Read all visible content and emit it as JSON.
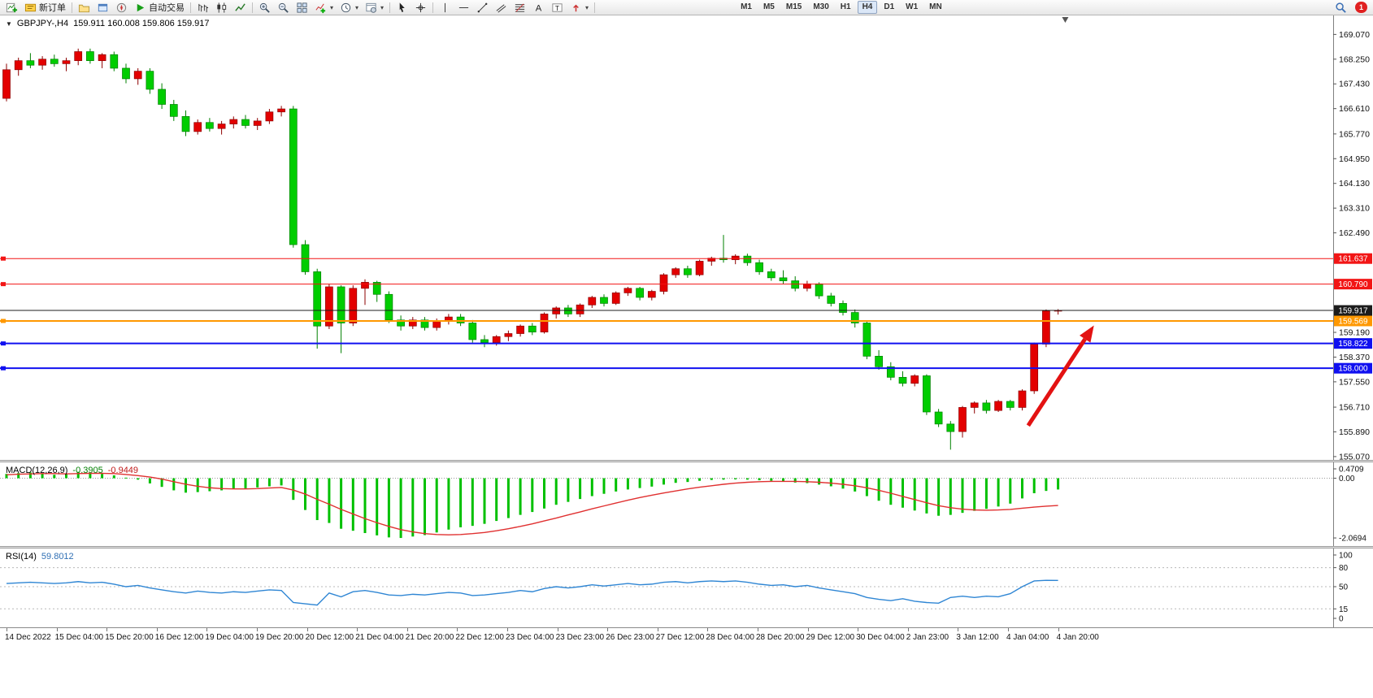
{
  "toolbar": {
    "new_order_label": "新订单",
    "auto_trading_label": "自动交易",
    "timeframes": [
      {
        "label": "M1",
        "active": false
      },
      {
        "label": "M5",
        "active": false
      },
      {
        "label": "M15",
        "active": false
      },
      {
        "label": "M30",
        "active": false
      },
      {
        "label": "H1",
        "active": false
      },
      {
        "label": "H4",
        "active": true
      },
      {
        "label": "D1",
        "active": false
      },
      {
        "label": "W1",
        "active": false
      },
      {
        "label": "MN",
        "active": false
      }
    ],
    "notification_count": "1",
    "icons": [
      "new-chart-icon",
      "new-order-icon",
      "charts-profile-icon",
      "market-watch-icon",
      "navigator-icon",
      "auto-trading-icon",
      "bar-chart-icon",
      "candlestick-chart-icon",
      "line-chart-icon",
      "zoom-in-icon",
      "zoom-out-icon",
      "tile-windows-icon",
      "indicators-icon",
      "periods-icon",
      "templates-icon",
      "cursor-icon",
      "crosshair-icon",
      "vertical-line-icon",
      "horizontal-line-icon",
      "trendline-icon",
      "channel-icon",
      "fibonacci-icon",
      "text-icon",
      "text-label-icon",
      "arrows-icon",
      "search-icon",
      "notification-badge"
    ]
  },
  "chart_data": {
    "type": "candlestick",
    "symbol_period": "GBPJPY-,H4",
    "ohlc_readout": "159.911 160.008 159.806 159.917",
    "price_axis": {
      "min": 154.96,
      "max": 169.7,
      "ticks": [
        "169.070",
        "168.250",
        "167.430",
        "166.610",
        "165.770",
        "164.950",
        "164.130",
        "163.310",
        "162.490",
        "159.190",
        "158.370",
        "157.550",
        "156.710",
        "155.890",
        "155.070"
      ]
    },
    "hlines": [
      {
        "price": 161.637,
        "label": "161.637",
        "color": "#f21515",
        "width": 1
      },
      {
        "price": 160.79,
        "label": "160.790",
        "color": "#f21515",
        "width": 1
      },
      {
        "price": 159.569,
        "label": "159.569",
        "color": "#ff9800",
        "width": 2
      },
      {
        "price": 158.822,
        "label": "158.822",
        "color": "#1010f0",
        "width": 2
      },
      {
        "price": 158.0,
        "label": "158.000",
        "color": "#1010f0",
        "width": 2
      }
    ],
    "current_price": {
      "value": 159.917,
      "label": "159.917",
      "color": "#1c1c1c"
    },
    "shift_marker_bar": 88.6,
    "annotation_arrow": {
      "from_bar": 85.5,
      "from_price": 156.1,
      "to_bar": 91,
      "to_price": 159.42,
      "color": "#e31212"
    },
    "candles": [
      [
        166.95,
        168.1,
        166.85,
        167.9
      ],
      [
        167.9,
        168.3,
        167.7,
        168.2
      ],
      [
        168.2,
        168.45,
        167.95,
        168.05
      ],
      [
        168.05,
        168.35,
        167.9,
        168.25
      ],
      [
        168.25,
        168.4,
        168.0,
        168.1
      ],
      [
        168.1,
        168.3,
        167.85,
        168.2
      ],
      [
        168.2,
        168.6,
        168.05,
        168.5
      ],
      [
        168.5,
        168.6,
        168.1,
        168.2
      ],
      [
        168.2,
        168.45,
        167.95,
        168.4
      ],
      [
        168.4,
        168.5,
        167.85,
        167.95
      ],
      [
        167.95,
        168.1,
        167.45,
        167.6
      ],
      [
        167.6,
        167.95,
        167.4,
        167.85
      ],
      [
        167.85,
        167.95,
        167.1,
        167.25
      ],
      [
        167.25,
        167.45,
        166.6,
        166.75
      ],
      [
        166.75,
        166.9,
        166.2,
        166.35
      ],
      [
        166.35,
        166.55,
        165.7,
        165.85
      ],
      [
        165.85,
        166.25,
        165.75,
        166.15
      ],
      [
        166.15,
        166.3,
        165.85,
        165.95
      ],
      [
        165.95,
        166.2,
        165.75,
        166.1
      ],
      [
        166.1,
        166.35,
        165.95,
        166.25
      ],
      [
        166.25,
        166.4,
        165.95,
        166.05
      ],
      [
        166.05,
        166.3,
        165.9,
        166.2
      ],
      [
        166.2,
        166.6,
        166.1,
        166.5
      ],
      [
        166.5,
        166.7,
        166.35,
        166.6
      ],
      [
        166.6,
        166.7,
        162.0,
        162.1
      ],
      [
        162.1,
        162.25,
        161.1,
        161.2
      ],
      [
        161.2,
        161.3,
        158.65,
        159.4
      ],
      [
        159.4,
        160.8,
        159.3,
        160.7
      ],
      [
        160.7,
        160.75,
        158.5,
        159.5
      ],
      [
        159.5,
        160.75,
        159.4,
        160.65
      ],
      [
        160.65,
        160.95,
        160.1,
        160.85
      ],
      [
        160.85,
        160.9,
        160.2,
        160.45
      ],
      [
        160.45,
        160.55,
        159.5,
        159.6
      ],
      [
        159.6,
        159.75,
        159.25,
        159.4
      ],
      [
        159.4,
        159.7,
        159.3,
        159.6
      ],
      [
        159.6,
        159.7,
        159.25,
        159.35
      ],
      [
        159.35,
        159.65,
        159.25,
        159.55
      ],
      [
        159.55,
        159.8,
        159.45,
        159.7
      ],
      [
        159.7,
        159.8,
        159.4,
        159.5
      ],
      [
        159.5,
        159.6,
        158.85,
        158.95
      ],
      [
        158.95,
        159.1,
        158.7,
        158.85
      ],
      [
        158.85,
        159.1,
        158.75,
        159.05
      ],
      [
        159.05,
        159.25,
        158.9,
        159.15
      ],
      [
        159.15,
        159.45,
        159.05,
        159.4
      ],
      [
        159.4,
        159.5,
        159.1,
        159.2
      ],
      [
        159.2,
        159.85,
        159.15,
        159.8
      ],
      [
        159.8,
        160.05,
        159.65,
        160.0
      ],
      [
        160.0,
        160.1,
        159.7,
        159.8
      ],
      [
        159.8,
        160.15,
        159.7,
        160.1
      ],
      [
        160.1,
        160.4,
        160.0,
        160.35
      ],
      [
        160.35,
        160.45,
        160.05,
        160.15
      ],
      [
        160.15,
        160.55,
        160.1,
        160.5
      ],
      [
        160.5,
        160.7,
        160.4,
        160.65
      ],
      [
        160.65,
        160.7,
        160.25,
        160.35
      ],
      [
        160.35,
        160.6,
        160.25,
        160.55
      ],
      [
        160.55,
        161.15,
        160.45,
        161.1
      ],
      [
        161.1,
        161.35,
        161.0,
        161.3
      ],
      [
        161.3,
        161.4,
        161.0,
        161.1
      ],
      [
        161.1,
        161.6,
        161.05,
        161.55
      ],
      [
        161.55,
        161.7,
        161.4,
        161.65
      ],
      [
        161.65,
        162.42,
        161.5,
        161.6
      ],
      [
        161.6,
        161.78,
        161.45,
        161.72
      ],
      [
        161.72,
        161.8,
        161.4,
        161.5
      ],
      [
        161.5,
        161.6,
        161.1,
        161.2
      ],
      [
        161.2,
        161.3,
        160.9,
        161.0
      ],
      [
        161.0,
        161.25,
        160.8,
        160.9
      ],
      [
        160.9,
        161.05,
        160.55,
        160.65
      ],
      [
        160.65,
        160.9,
        160.55,
        160.8
      ],
      [
        160.8,
        160.85,
        160.3,
        160.4
      ],
      [
        160.4,
        160.5,
        160.05,
        160.15
      ],
      [
        160.15,
        160.25,
        159.75,
        159.85
      ],
      [
        159.85,
        159.95,
        159.35,
        159.5
      ],
      [
        159.5,
        159.55,
        158.3,
        158.4
      ],
      [
        158.4,
        158.6,
        157.95,
        158.05
      ],
      [
        158.05,
        158.2,
        157.6,
        157.7
      ],
      [
        157.7,
        157.9,
        157.4,
        157.5
      ],
      [
        157.5,
        157.8,
        157.4,
        157.75
      ],
      [
        157.75,
        157.8,
        156.45,
        156.55
      ],
      [
        156.55,
        156.65,
        156.05,
        156.15
      ],
      [
        156.15,
        156.25,
        155.3,
        155.9
      ],
      [
        155.9,
        156.75,
        155.7,
        156.7
      ],
      [
        156.7,
        156.9,
        156.5,
        156.85
      ],
      [
        156.85,
        156.95,
        156.5,
        156.6
      ],
      [
        156.6,
        156.95,
        156.55,
        156.9
      ],
      [
        156.9,
        156.95,
        156.6,
        156.7
      ],
      [
        156.7,
        157.3,
        156.6,
        157.25
      ],
      [
        157.25,
        158.85,
        157.15,
        158.8
      ],
      [
        158.8,
        159.95,
        158.7,
        159.9
      ],
      [
        159.9,
        159.96,
        159.78,
        159.92
      ]
    ],
    "x_labels": [
      "14 Dec 2022",
      "15 Dec 04:00",
      "15 Dec 20:00",
      "16 Dec 12:00",
      "19 Dec 04:00",
      "19 Dec 20:00",
      "20 Dec 12:00",
      "21 Dec 04:00",
      "21 Dec 20:00",
      "22 Dec 12:00",
      "23 Dec 04:00",
      "23 Dec 23:00",
      "26 Dec 23:00",
      "27 Dec 12:00",
      "28 Dec 04:00",
      "28 Dec 20:00",
      "29 Dec 12:00",
      "30 Dec 04:00",
      "2 Jan 23:00",
      "3 Jan 12:00",
      "4 Jan 04:00",
      "4 Jan 20:00"
    ],
    "indicators": {
      "macd": {
        "name": "MACD(12,26,9)",
        "value_main": "-0.3905",
        "value_signal": "-0.9449",
        "max": 0.55,
        "min": -2.35,
        "axis_labels": [
          "0.4709",
          "0.00",
          "-2.0694"
        ],
        "histogram": [
          0.15,
          0.18,
          0.2,
          0.16,
          0.12,
          0.15,
          0.22,
          0.18,
          0.15,
          0.1,
          0.02,
          -0.05,
          -0.18,
          -0.3,
          -0.42,
          -0.5,
          -0.48,
          -0.45,
          -0.42,
          -0.38,
          -0.35,
          -0.32,
          -0.28,
          -0.25,
          -0.75,
          -1.1,
          -1.45,
          -1.55,
          -1.75,
          -1.82,
          -1.9,
          -1.98,
          -2.05,
          -2.07,
          -2.02,
          -1.97,
          -1.88,
          -1.78,
          -1.7,
          -1.65,
          -1.58,
          -1.48,
          -1.38,
          -1.27,
          -1.17,
          -1.05,
          -0.92,
          -0.82,
          -0.72,
          -0.62,
          -0.54,
          -0.46,
          -0.39,
          -0.34,
          -0.29,
          -0.22,
          -0.16,
          -0.13,
          -0.09,
          -0.06,
          -0.05,
          -0.04,
          -0.05,
          -0.07,
          -0.09,
          -0.12,
          -0.15,
          -0.17,
          -0.22,
          -0.28,
          -0.36,
          -0.46,
          -0.62,
          -0.78,
          -0.92,
          -1.02,
          -1.12,
          -1.22,
          -1.3,
          -1.27,
          -1.2,
          -1.13,
          -1.06,
          -0.98,
          -0.88,
          -0.7,
          -0.52,
          -0.44,
          -0.3905
        ],
        "signal": [
          0.12,
          0.14,
          0.15,
          0.16,
          0.16,
          0.15,
          0.16,
          0.17,
          0.17,
          0.16,
          0.13,
          0.09,
          0.04,
          -0.03,
          -0.12,
          -0.21,
          -0.28,
          -0.33,
          -0.36,
          -0.37,
          -0.37,
          -0.36,
          -0.34,
          -0.32,
          -0.41,
          -0.55,
          -0.73,
          -0.9,
          -1.08,
          -1.24,
          -1.4,
          -1.54,
          -1.67,
          -1.78,
          -1.86,
          -1.92,
          -1.95,
          -1.96,
          -1.95,
          -1.92,
          -1.88,
          -1.82,
          -1.75,
          -1.67,
          -1.58,
          -1.48,
          -1.38,
          -1.27,
          -1.17,
          -1.06,
          -0.96,
          -0.86,
          -0.76,
          -0.67,
          -0.59,
          -0.51,
          -0.44,
          -0.37,
          -0.31,
          -0.26,
          -0.21,
          -0.17,
          -0.14,
          -0.12,
          -0.11,
          -0.11,
          -0.11,
          -0.12,
          -0.14,
          -0.17,
          -0.21,
          -0.26,
          -0.33,
          -0.42,
          -0.52,
          -0.63,
          -0.74,
          -0.85,
          -0.95,
          -1.02,
          -1.07,
          -1.1,
          -1.11,
          -1.1,
          -1.08,
          -1.04,
          -1.0,
          -0.97,
          -0.9449
        ]
      },
      "rsi": {
        "name": "RSI(14)",
        "value": "59.8012",
        "axis_labels": [
          "100",
          "80",
          "50",
          "15",
          "0"
        ],
        "levels": [
          80,
          50,
          15
        ],
        "values": [
          55,
          56,
          57,
          56,
          55,
          56,
          58,
          56,
          57,
          54,
          50,
          52,
          48,
          45,
          42,
          40,
          43,
          41,
          40,
          42,
          41,
          43,
          45,
          44,
          25,
          23,
          21,
          40,
          34,
          42,
          44,
          41,
          37,
          36,
          38,
          37,
          39,
          41,
          40,
          36,
          37,
          39,
          41,
          44,
          42,
          47,
          50,
          48,
          50,
          53,
          51,
          53,
          55,
          53,
          54,
          57,
          58,
          56,
          58,
          59,
          58,
          59,
          57,
          54,
          52,
          53,
          50,
          52,
          48,
          45,
          42,
          39,
          33,
          30,
          28,
          31,
          27,
          25,
          24,
          33,
          35,
          33,
          35,
          34,
          39,
          50,
          59,
          60,
          59.8
        ]
      }
    }
  },
  "colors": {
    "bull": "#e30000",
    "bull_stroke": "#8e0000",
    "bear": "#00cd00",
    "bear_stroke": "#008000",
    "macd_hist": "#00c000",
    "macd_signal": "#e03030",
    "rsi_line": "#2f86d4",
    "axis_text": "#101010"
  }
}
